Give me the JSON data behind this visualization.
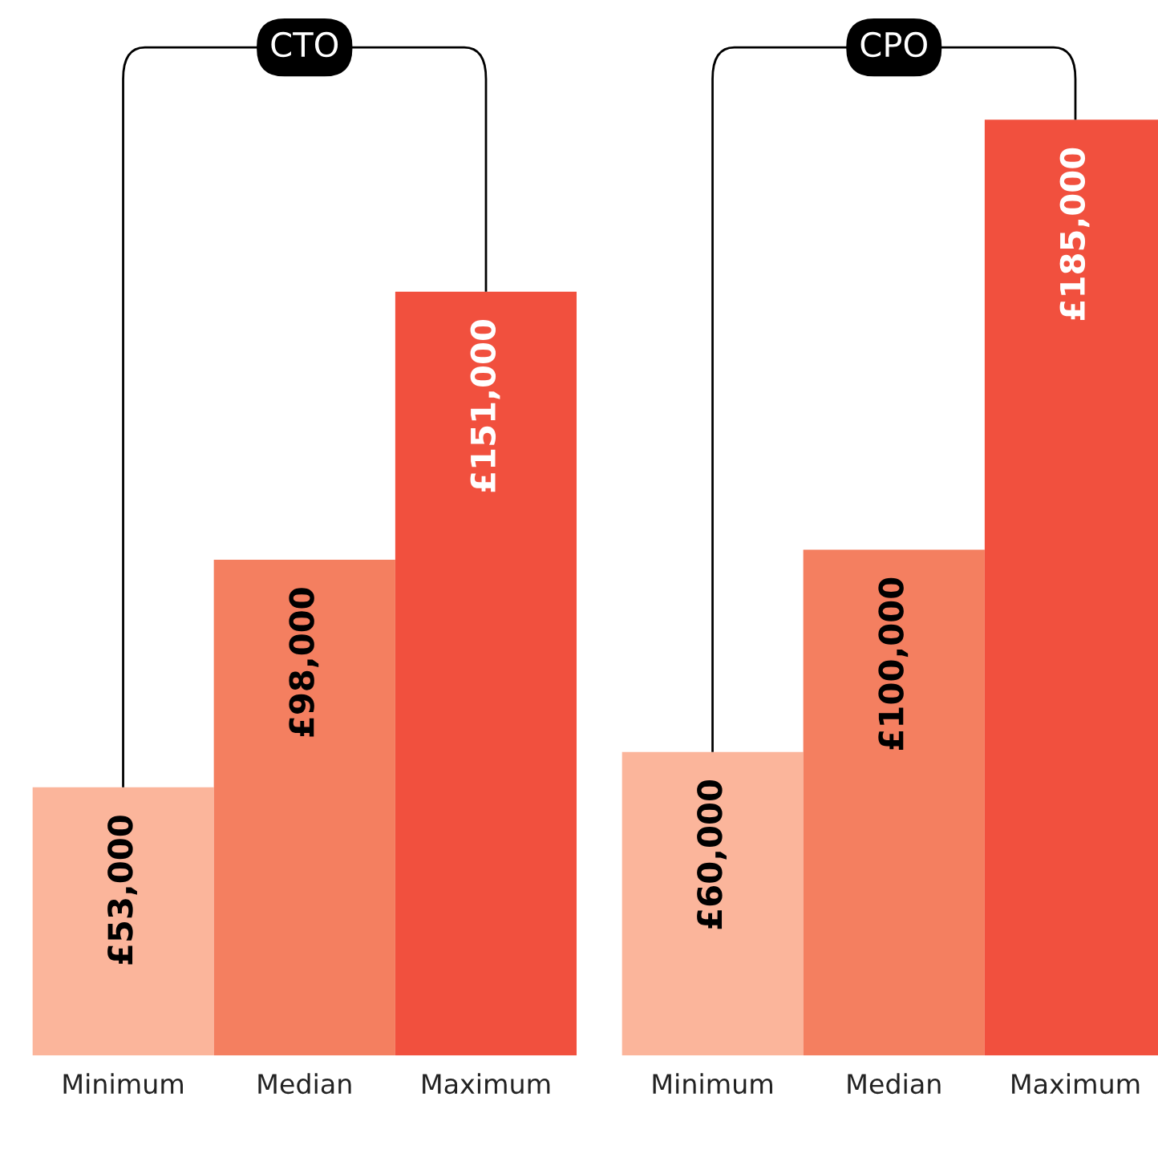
{
  "chart_data": [
    {
      "type": "bar",
      "title": "CTO",
      "categories": [
        "Minimum",
        "Median",
        "Maximum"
      ],
      "values": [
        53000,
        98000,
        151000
      ],
      "colors": [
        "#fbb59b",
        "#f47f60",
        "#f1503e"
      ],
      "value_labels": [
        "£53,000",
        "£98,000",
        "£151,000"
      ],
      "tick_labels": "x",
      "grid": false,
      "legend": false
    },
    {
      "type": "bar",
      "title": "CPO",
      "categories": [
        "Minimum",
        "Median",
        "Maximum"
      ],
      "values": [
        60000,
        100000,
        185000
      ],
      "colors": [
        "#fbb59b",
        "#f47f60",
        "#f1503e"
      ],
      "value_labels": [
        "£60,000",
        "£100,000",
        "£185,000"
      ],
      "tick_labels": "x",
      "grid": false,
      "legend": false
    }
  ]
}
